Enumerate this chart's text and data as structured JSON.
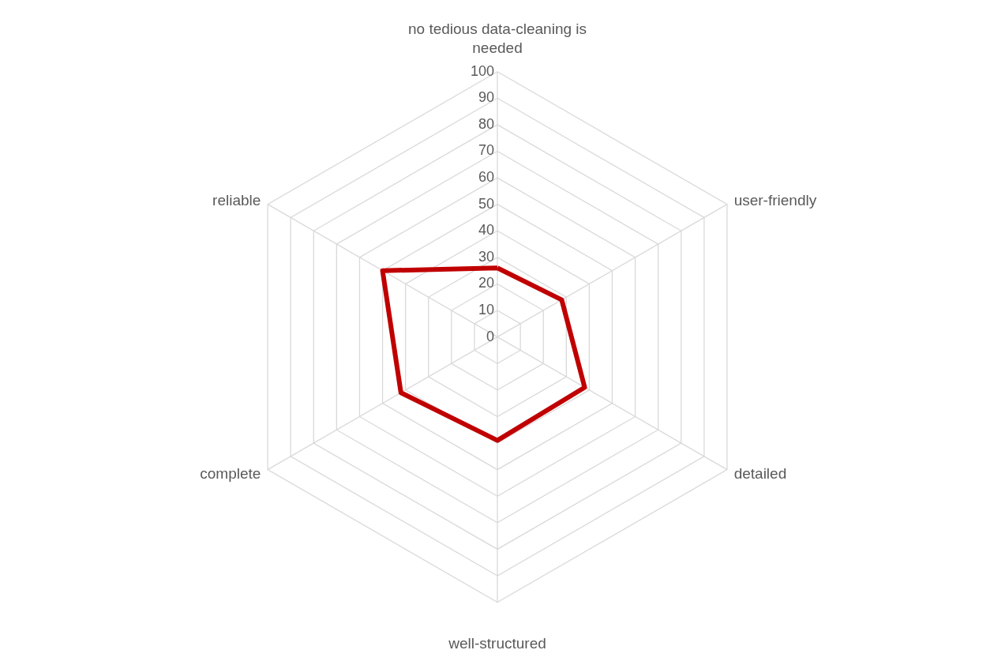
{
  "chart_data": {
    "type": "radar",
    "categories": [
      "no tedious data-cleaning is needed",
      "user-friendly",
      "detailed",
      "well-structured",
      "complete",
      "reliable"
    ],
    "series": [
      {
        "color": "#c00000",
        "values": [
          26,
          28,
          38,
          39,
          42,
          50
        ]
      }
    ],
    "ylim": [
      0,
      100
    ],
    "yticks": [
      0,
      10,
      20,
      30,
      40,
      50,
      60,
      70,
      80,
      90,
      100
    ],
    "grid": true,
    "legend": false,
    "marker": "none",
    "line_style": "solid"
  }
}
